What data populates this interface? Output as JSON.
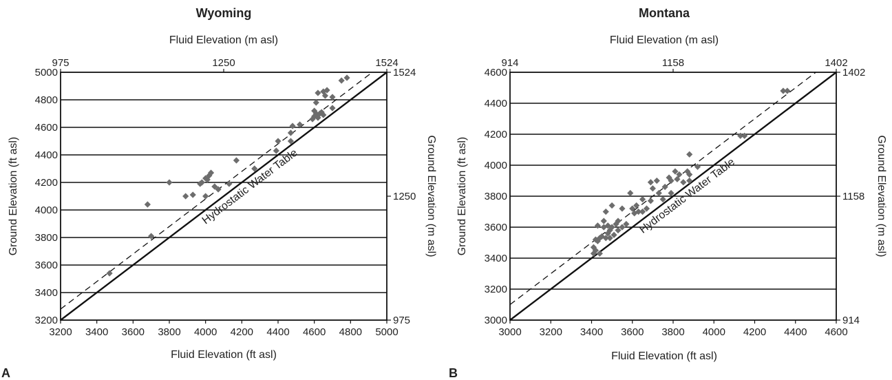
{
  "chart_data": [
    {
      "type": "scatter",
      "panel_letter": "A",
      "title": "Wyoming",
      "xlabel": "Fluid Elevation (ft asl)",
      "ylabel": "Ground Elevation (ft asl)",
      "x2label": "Fluid Elevation (m asl)",
      "y2label": "Ground Elevation (m asl)",
      "xlim": [
        3200,
        5000
      ],
      "ylim": [
        3200,
        5000
      ],
      "xticks": [
        3200,
        3400,
        3600,
        3800,
        4000,
        4200,
        4400,
        4600,
        4800,
        5000
      ],
      "yticks": [
        3200,
        3400,
        3600,
        3800,
        4000,
        4200,
        4400,
        4600,
        4800,
        5000
      ],
      "secondary_ticks": [
        {
          "label": "975",
          "ft": 3200
        },
        {
          "label": "1250",
          "ft": 4100
        },
        {
          "label": "1524",
          "ft": 5000
        }
      ],
      "line_label": "Hydrostatic Water Table",
      "line_label_at": 4240,
      "dashed_offset": 80,
      "marker_color": "#6d6d6d",
      "points": [
        [
          3470,
          3540
        ],
        [
          3680,
          4040
        ],
        [
          3700,
          3810
        ],
        [
          3800,
          4200
        ],
        [
          3890,
          4100
        ],
        [
          3930,
          4110
        ],
        [
          3970,
          4190
        ],
        [
          3980,
          4200
        ],
        [
          4000,
          4230
        ],
        [
          4010,
          4220
        ],
        [
          4020,
          4250
        ],
        [
          4030,
          4270
        ],
        [
          4000,
          4100
        ],
        [
          4050,
          4170
        ],
        [
          4070,
          4150
        ],
        [
          4130,
          4190
        ],
        [
          4170,
          4360
        ],
        [
          4270,
          4300
        ],
        [
          4390,
          4430
        ],
        [
          4400,
          4500
        ],
        [
          4470,
          4500
        ],
        [
          4470,
          4560
        ],
        [
          4480,
          4610
        ],
        [
          4520,
          4620
        ],
        [
          4590,
          4660
        ],
        [
          4600,
          4680
        ],
        [
          4600,
          4720
        ],
        [
          4610,
          4700
        ],
        [
          4610,
          4780
        ],
        [
          4620,
          4670
        ],
        [
          4630,
          4700
        ],
        [
          4640,
          4710
        ],
        [
          4650,
          4690
        ],
        [
          4620,
          4850
        ],
        [
          4650,
          4860
        ],
        [
          4660,
          4830
        ],
        [
          4670,
          4870
        ],
        [
          4700,
          4820
        ],
        [
          4700,
          4740
        ],
        [
          4750,
          4940
        ],
        [
          4780,
          4960
        ]
      ]
    },
    {
      "type": "scatter",
      "panel_letter": "B",
      "title": "Montana",
      "xlabel": "Fluid Elevation (ft asl)",
      "ylabel": "Ground Elevation (ft asl)",
      "x2label": "Fluid Elevation (m asl)",
      "y2label": "Ground Elevation (m asl)",
      "xlim": [
        3000,
        4600
      ],
      "ylim": [
        3000,
        4600
      ],
      "xticks": [
        3000,
        3200,
        3400,
        3600,
        3800,
        4000,
        4200,
        4400,
        4600
      ],
      "yticks": [
        3000,
        3200,
        3400,
        3600,
        3800,
        4000,
        4200,
        4400,
        4600
      ],
      "secondary_ticks": [
        {
          "label": "914",
          "ft": 3000
        },
        {
          "label": "1158",
          "ft": 3800
        },
        {
          "label": "1402",
          "ft": 4600
        }
      ],
      "line_label": "Hydrostatic Water Table",
      "line_label_at": 3865,
      "dashed_offset": 100,
      "marker_color": "#6d6d6d",
      "points": [
        [
          3410,
          3430
        ],
        [
          3420,
          3450
        ],
        [
          3410,
          3470
        ],
        [
          3420,
          3520
        ],
        [
          3430,
          3510
        ],
        [
          3440,
          3430
        ],
        [
          3440,
          3530
        ],
        [
          3430,
          3610
        ],
        [
          3450,
          3540
        ],
        [
          3460,
          3600
        ],
        [
          3460,
          3640
        ],
        [
          3470,
          3700
        ],
        [
          3470,
          3530
        ],
        [
          3480,
          3560
        ],
        [
          3480,
          3610
        ],
        [
          3490,
          3580
        ],
        [
          3490,
          3530
        ],
        [
          3500,
          3740
        ],
        [
          3500,
          3600
        ],
        [
          3510,
          3550
        ],
        [
          3520,
          3620
        ],
        [
          3530,
          3580
        ],
        [
          3530,
          3640
        ],
        [
          3550,
          3600
        ],
        [
          3550,
          3720
        ],
        [
          3570,
          3620
        ],
        [
          3590,
          3820
        ],
        [
          3600,
          3720
        ],
        [
          3610,
          3690
        ],
        [
          3620,
          3740
        ],
        [
          3630,
          3700
        ],
        [
          3650,
          3700
        ],
        [
          3650,
          3780
        ],
        [
          3670,
          3720
        ],
        [
          3690,
          3770
        ],
        [
          3690,
          3890
        ],
        [
          3700,
          3850
        ],
        [
          3720,
          3900
        ],
        [
          3730,
          3820
        ],
        [
          3750,
          3780
        ],
        [
          3760,
          3860
        ],
        [
          3780,
          3920
        ],
        [
          3790,
          3900
        ],
        [
          3790,
          3820
        ],
        [
          3810,
          3960
        ],
        [
          3820,
          3910
        ],
        [
          3830,
          3940
        ],
        [
          3850,
          3890
        ],
        [
          3870,
          3960
        ],
        [
          3880,
          4070
        ],
        [
          3880,
          3900
        ],
        [
          3880,
          3940
        ],
        [
          3920,
          3990
        ],
        [
          4130,
          4190
        ],
        [
          4150,
          4190
        ],
        [
          4340,
          4480
        ],
        [
          4360,
          4480
        ]
      ]
    }
  ]
}
